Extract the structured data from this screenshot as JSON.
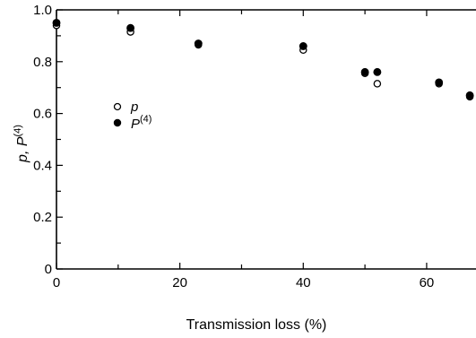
{
  "chart_data": {
    "type": "scatter",
    "title": "",
    "xlabel": "Transmission loss (%)",
    "ylabel": "p, P(4)",
    "xlim": [
      0,
      68
    ],
    "ylim": [
      0,
      1.0
    ],
    "x_ticks": [
      0,
      20,
      40,
      60
    ],
    "y_ticks": [
      0,
      0.2,
      0.4,
      0.6,
      0.8,
      1.0
    ],
    "y_tick_labels": [
      "0",
      "0.2",
      "0.4",
      "0.6",
      "0.8",
      "1.0"
    ],
    "grid": false,
    "legend_position": "middle-left",
    "series": [
      {
        "name": "p",
        "marker": "open-circle",
        "color": "#000000",
        "points": [
          {
            "x": 0,
            "y": 0.94
          },
          {
            "x": 12,
            "y": 0.915
          },
          {
            "x": 23,
            "y": 0.865
          },
          {
            "x": 40,
            "y": 0.845
          },
          {
            "x": 50,
            "y": 0.755
          },
          {
            "x": 52,
            "y": 0.715
          },
          {
            "x": 62,
            "y": 0.715
          },
          {
            "x": 67,
            "y": 0.665
          }
        ]
      },
      {
        "name": "P(4)",
        "marker": "filled-circle",
        "color": "#000000",
        "points": [
          {
            "x": 0,
            "y": 0.95
          },
          {
            "x": 12,
            "y": 0.93
          },
          {
            "x": 23,
            "y": 0.87
          },
          {
            "x": 40,
            "y": 0.86
          },
          {
            "x": 50,
            "y": 0.76
          },
          {
            "x": 52,
            "y": 0.76
          },
          {
            "x": 62,
            "y": 0.72
          },
          {
            "x": 67,
            "y": 0.67
          }
        ]
      }
    ],
    "legend": [
      {
        "label": "p",
        "marker": "open-circle"
      },
      {
        "label": "P",
        "superscript": "(4)",
        "marker": "filled-circle"
      }
    ]
  }
}
